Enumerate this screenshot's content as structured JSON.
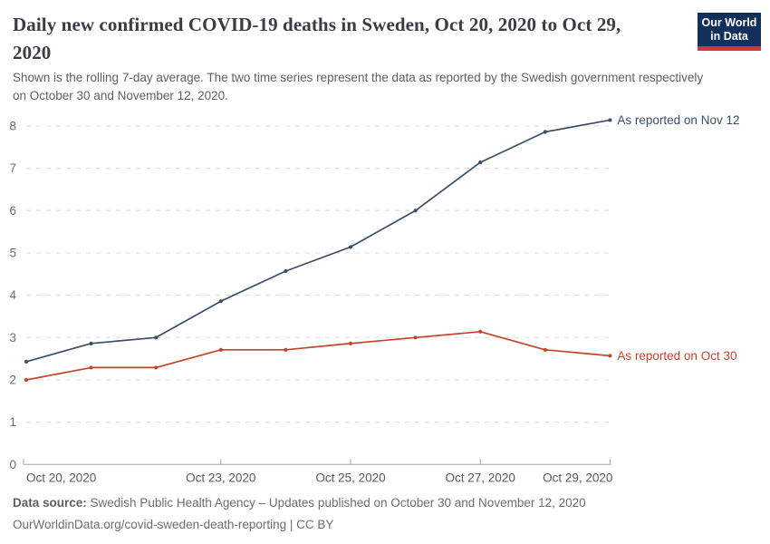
{
  "header": {
    "title": "Daily new confirmed COVID-19 deaths in Sweden, Oct 20, 2020 to Oct 29, 2020",
    "subtitle": "Shown is the rolling 7-day average. The two time series represent the data as reported by the Swedish government respectively on October 30 and November 12, 2020."
  },
  "logo": {
    "line1": "Our World",
    "line2": "in Data",
    "navy_color": "#12305B",
    "red_color": "#CE3A31"
  },
  "chart_data": {
    "type": "line",
    "title": "Daily new confirmed COVID-19 deaths in Sweden, Oct 20, 2020 to Oct 29, 2020",
    "x": [
      "Oct 20, 2020",
      "Oct 21, 2020",
      "Oct 22, 2020",
      "Oct 23, 2020",
      "Oct 24, 2020",
      "Oct 25, 2020",
      "Oct 26, 2020",
      "Oct 27, 2020",
      "Oct 28, 2020",
      "Oct 29, 2020"
    ],
    "series": [
      {
        "name": "As reported on Nov 12",
        "color": "#3C4E66",
        "values": [
          2.43,
          2.86,
          3.0,
          3.86,
          4.57,
          5.14,
          6.0,
          7.14,
          7.86,
          8.14
        ]
      },
      {
        "name": "As reported on Oct 30",
        "color": "#C2452A",
        "values": [
          2.0,
          2.29,
          2.29,
          2.71,
          2.71,
          2.86,
          3.0,
          3.14,
          2.71,
          2.57
        ]
      }
    ],
    "ylim": [
      0,
      8
    ],
    "yticks": [
      0,
      1,
      2,
      3,
      4,
      5,
      6,
      7,
      8
    ],
    "xticks": [
      {
        "i": 0,
        "label": "Oct 20, 2020",
        "anchor": "start"
      },
      {
        "i": 3,
        "label": "Oct 23, 2020",
        "anchor": "middle"
      },
      {
        "i": 5,
        "label": "Oct 25, 2020",
        "anchor": "middle"
      },
      {
        "i": 7,
        "label": "Oct 27, 2020",
        "anchor": "middle"
      },
      {
        "i": 9,
        "label": "Oct 29, 2020",
        "anchor": "end"
      }
    ],
    "grid": "horizontal-dashed",
    "legend_position": "line-end-labels"
  },
  "footer": {
    "source_label": "Data source:",
    "source_text": " Swedish Public Health Agency – Updates published on October 30 and November 12, 2020",
    "link_line": "OurWorldinData.org/covid-sweden-death-reporting | CC BY"
  }
}
